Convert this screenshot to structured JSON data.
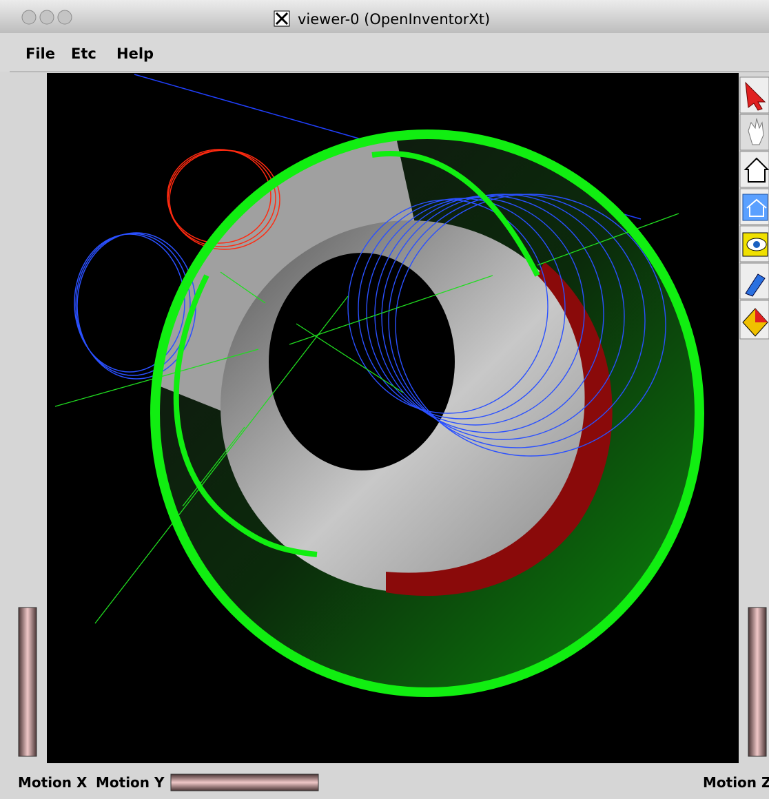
{
  "window": {
    "title": "viewer-0 (OpenInventorXt)"
  },
  "menu": [
    "File",
    "Etc",
    "Help"
  ],
  "footer": {
    "labels": [
      "Motion X",
      "Motion Y",
      "Motion Z"
    ]
  }
}
